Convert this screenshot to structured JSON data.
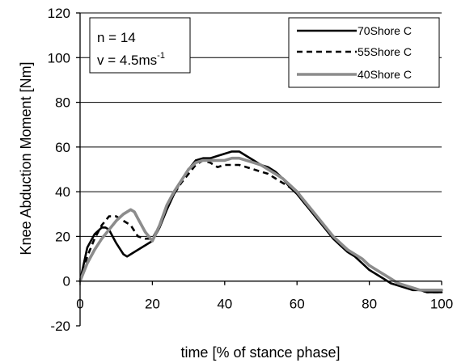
{
  "chart_data": {
    "type": "line",
    "title": "",
    "xlabel": "time [% of stance phase]",
    "ylabel": "Knee Abduction Moment [Nm]",
    "xlim": [
      0,
      100
    ],
    "ylim": [
      -20,
      120
    ],
    "xticks": [
      0,
      20,
      40,
      60,
      80,
      100
    ],
    "yticks": [
      -20,
      0,
      20,
      40,
      60,
      80,
      100,
      120
    ],
    "grid": "horizontal",
    "legend_position": "top-right",
    "annotation": {
      "line1": "n = 14",
      "line2_base": "v = 4.5ms",
      "line2_sup": "-1"
    },
    "series": [
      {
        "name": "70Shore C",
        "color": "#000000",
        "style": "solid",
        "x": [
          0,
          2,
          4,
          6,
          7,
          8,
          10,
          12,
          13,
          14,
          16,
          18,
          20,
          22,
          24,
          26,
          28,
          30,
          32,
          34,
          36,
          38,
          40,
          42,
          44,
          46,
          48,
          50,
          52,
          54,
          56,
          58,
          60,
          62,
          64,
          66,
          68,
          70,
          72,
          74,
          76,
          78,
          80,
          82,
          84,
          86,
          88,
          90,
          92,
          94,
          96,
          98,
          100
        ],
        "y": [
          0,
          15,
          21,
          24,
          24,
          23,
          17,
          12,
          11,
          12,
          14,
          16,
          18,
          24,
          32,
          39,
          45,
          50,
          54,
          55,
          55,
          56,
          57,
          58,
          58,
          56,
          54,
          52,
          51,
          49,
          46,
          42,
          39,
          35,
          31,
          27,
          23,
          19,
          16,
          13,
          11,
          8,
          5,
          3,
          1,
          -1,
          -2,
          -3,
          -4,
          -4,
          -5,
          -5,
          -5
        ]
      },
      {
        "name": "55Shore C",
        "color": "#000000",
        "style": "dashed",
        "x": [
          0,
          2,
          4,
          6,
          8,
          10,
          12,
          14,
          16,
          18,
          20,
          22,
          24,
          26,
          28,
          30,
          32,
          34,
          36,
          38,
          40,
          42,
          44,
          46,
          48,
          50,
          52,
          54,
          56,
          58,
          60,
          62,
          64,
          66,
          68,
          70,
          72,
          74,
          76,
          78,
          80,
          82,
          84,
          86,
          88,
          90,
          92,
          94,
          96,
          98,
          100
        ],
        "y": [
          0,
          11,
          19,
          25,
          29,
          29,
          27,
          25,
          20,
          19,
          19,
          25,
          33,
          39,
          44,
          48,
          52,
          54,
          53,
          51,
          52,
          52,
          52,
          51,
          50,
          49,
          48,
          46,
          44,
          42,
          40,
          36,
          32,
          28,
          24,
          20,
          17,
          14,
          12,
          10,
          7,
          5,
          3,
          1,
          -1,
          -2,
          -3,
          -4,
          -5,
          -5,
          -5
        ]
      },
      {
        "name": "40Shore C",
        "color": "#8c8c8c",
        "style": "solid",
        "x": [
          0,
          2,
          4,
          6,
          8,
          10,
          12,
          14,
          15,
          16,
          18,
          20,
          22,
          24,
          26,
          28,
          30,
          32,
          34,
          36,
          38,
          40,
          42,
          44,
          46,
          48,
          50,
          52,
          54,
          56,
          58,
          60,
          62,
          64,
          66,
          68,
          70,
          72,
          74,
          76,
          78,
          80,
          82,
          84,
          86,
          88,
          90,
          92,
          94,
          96,
          98,
          100
        ],
        "y": [
          0,
          8,
          14,
          19,
          23,
          27,
          30,
          32,
          31,
          28,
          22,
          18,
          25,
          34,
          40,
          45,
          50,
          53,
          54,
          54,
          54,
          54,
          55,
          55,
          54,
          53,
          52,
          50,
          48,
          46,
          43,
          40,
          36,
          32,
          28,
          24,
          20,
          17,
          14,
          12,
          10,
          7,
          5,
          3,
          1,
          -1,
          -2,
          -3,
          -4,
          -4,
          -4,
          -4
        ]
      }
    ]
  }
}
